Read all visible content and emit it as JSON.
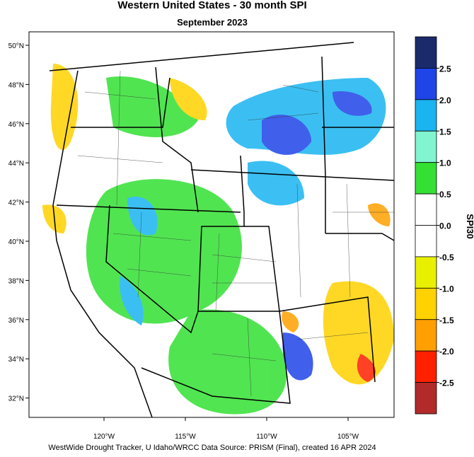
{
  "header": {
    "title": "Western United States - 30 month SPI",
    "subtitle": "September 2023"
  },
  "map": {
    "lat_labels": [
      "50°N",
      "48°N",
      "46°N",
      "44°N",
      "42°N",
      "40°N",
      "38°N",
      "36°N",
      "34°N",
      "32°N"
    ],
    "lon_labels": [
      "120°W",
      "115°W",
      "110°W",
      "105°W"
    ]
  },
  "colorbar": {
    "title": "SPI30",
    "colors": [
      "#1b2a6b",
      "#1f44e8",
      "#1ab4f0",
      "#80f5d0",
      "#33e033",
      "#ffffff",
      "#ffffff",
      "#e8f000",
      "#ffd200",
      "#ffa000",
      "#ff2000",
      "#b22a2a"
    ],
    "ticks": [
      2.5,
      {
        "value": 2,
        "label": "2.0"
      },
      1.5,
      {
        "value": 1,
        "label": "1.0"
      },
      0.5,
      {
        "value": 0,
        "label": "0.0"
      },
      -0.5,
      {
        "value": -1,
        "label": "-1.0"
      },
      -1.5,
      {
        "value": -2,
        "label": "-2.0"
      },
      -2.5
    ]
  },
  "footer": "WestWide Drought Tracker, U Idaho/WRCC Data Source: PRISM (Final), created 16 APR 2024"
}
